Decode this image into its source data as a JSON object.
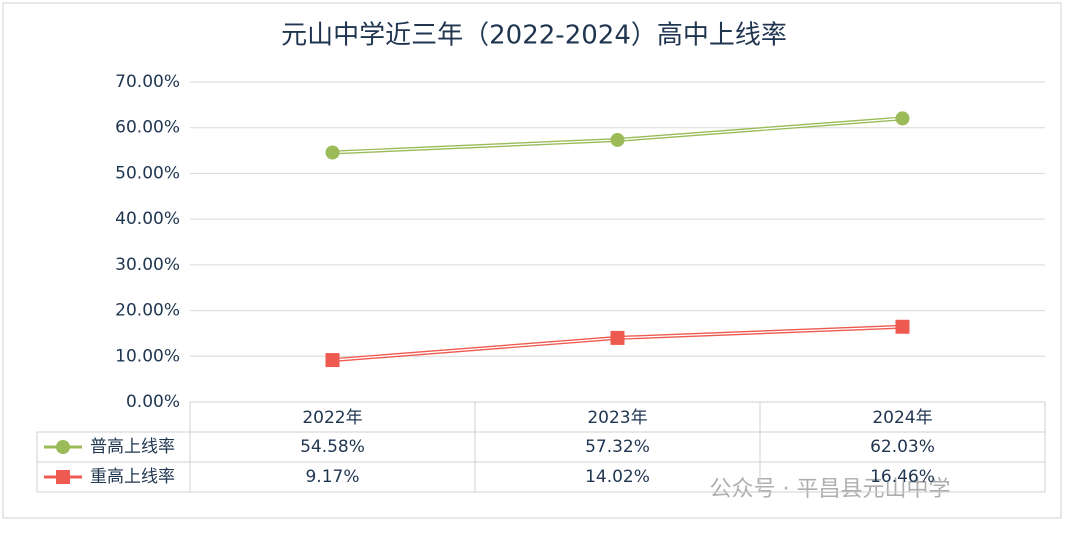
{
  "chart_data": {
    "type": "line",
    "title": "元山中学近三年（2022-2024）高中上线率",
    "categories": [
      "2022年",
      "2023年",
      "2024年"
    ],
    "series": [
      {
        "name": "普高上线率",
        "color": "#9bbb59",
        "marker": "circle",
        "values": [
          54.58,
          57.32,
          62.03
        ],
        "value_labels": [
          "54.58%",
          "57.32%",
          "62.03%"
        ]
      },
      {
        "name": "重高上线率",
        "color": "#ee5a50",
        "marker": "square",
        "values": [
          9.17,
          14.02,
          16.46
        ],
        "value_labels": [
          "9.17%",
          "14.02%",
          "16.46%"
        ]
      }
    ],
    "ylim": [
      0,
      70
    ],
    "yticks": [
      {
        "value": 0,
        "label": "0.00%"
      },
      {
        "value": 10,
        "label": "10.00%"
      },
      {
        "value": 20,
        "label": "20.00%"
      },
      {
        "value": 30,
        "label": "30.00%"
      },
      {
        "value": 40,
        "label": "40.00%"
      },
      {
        "value": 50,
        "label": "50.00%"
      },
      {
        "value": 60,
        "label": "60.00%"
      },
      {
        "value": 70,
        "label": "70.00%"
      }
    ],
    "grid": true,
    "watermark": "公众号 · 平昌县元山中学"
  }
}
